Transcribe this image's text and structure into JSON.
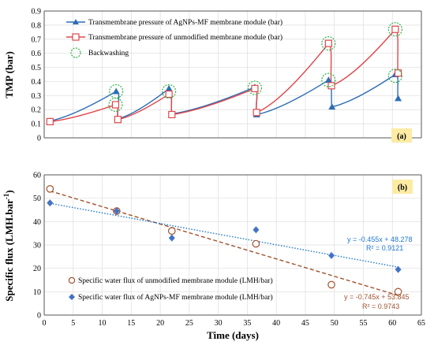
{
  "chart_data": [
    {
      "panel": "(a)",
      "type": "line",
      "ylabel": "TMP (bar)",
      "xlim": [
        0,
        65
      ],
      "ylim": [
        0,
        0.9
      ],
      "yticks": [
        "0",
        "0.1",
        "0.2",
        "0.3",
        "0.4",
        "0.5",
        "0.6",
        "0.7",
        "0.8",
        "0.9"
      ],
      "grid": true,
      "legend_position": "top-left",
      "series": [
        {
          "name": "Transmembrane pressure of AgNPs-MF membrane module (bar)",
          "color": "#2E6DB4",
          "marker": "triangle",
          "cycles": [
            [
              [
                1,
                0.12
              ],
              [
                12.4,
                0.33
              ]
            ],
            [
              [
                12.5,
                0.33
              ],
              [
                12.7,
                0.135
              ]
            ],
            [
              [
                12.7,
                0.135
              ],
              [
                21.5,
                0.35
              ]
            ],
            [
              [
                21.5,
                0.35
              ],
              [
                22,
                0.17
              ]
            ],
            [
              [
                22,
                0.17
              ],
              [
                36.3,
                0.36
              ]
            ],
            [
              [
                36.3,
                0.36
              ],
              [
                36.6,
                0.165
              ]
            ],
            [
              [
                36.6,
                0.165
              ],
              [
                49,
                0.41
              ]
            ],
            [
              [
                49,
                0.41
              ],
              [
                49.6,
                0.22
              ]
            ],
            [
              [
                49.6,
                0.22
              ],
              [
                60.5,
                0.45
              ]
            ],
            [
              [
                60.5,
                0.45
              ],
              [
                61,
                0.28
              ]
            ]
          ],
          "markers": [
            [
              1,
              0.12
            ],
            [
              12.4,
              0.33
            ],
            [
              12.7,
              0.135
            ],
            [
              21.5,
              0.35
            ],
            [
              22,
              0.17
            ],
            [
              36.3,
              0.36
            ],
            [
              36.6,
              0.165
            ],
            [
              49,
              0.41
            ],
            [
              49.6,
              0.22
            ],
            [
              60.5,
              0.45
            ],
            [
              61,
              0.28
            ]
          ]
        },
        {
          "name": "Transmembrane pressure of unmodified membrane module (bar)",
          "color": "#E0474C",
          "marker": "square",
          "cycles": [
            [
              [
                1,
                0.115
              ],
              [
                12.3,
                0.235
              ]
            ],
            [
              [
                12.3,
                0.235
              ],
              [
                12.7,
                0.13
              ]
            ],
            [
              [
                12.7,
                0.13
              ],
              [
                21.5,
                0.31
              ]
            ],
            [
              [
                21.5,
                0.31
              ],
              [
                22,
                0.165
              ]
            ],
            [
              [
                22,
                0.165
              ],
              [
                36.3,
                0.35
              ]
            ],
            [
              [
                36.3,
                0.35
              ],
              [
                36.6,
                0.18
              ]
            ],
            [
              [
                36.6,
                0.18
              ],
              [
                49,
                0.67
              ]
            ],
            [
              [
                49,
                0.67
              ],
              [
                49.5,
                0.37
              ]
            ],
            [
              [
                49.5,
                0.37
              ],
              [
                60.5,
                0.77
              ]
            ],
            [
              [
                60.5,
                0.77
              ],
              [
                61,
                0.46
              ]
            ]
          ],
          "markers": [
            [
              1,
              0.115
            ],
            [
              12.3,
              0.235
            ],
            [
              12.7,
              0.13
            ],
            [
              21.5,
              0.31
            ],
            [
              22,
              0.165
            ],
            [
              36.3,
              0.35
            ],
            [
              36.6,
              0.18
            ],
            [
              49,
              0.67
            ],
            [
              49.5,
              0.37
            ],
            [
              60.5,
              0.77
            ],
            [
              61,
              0.46
            ]
          ]
        }
      ],
      "backwashing": {
        "name": "Backwashing",
        "color": "#2DB34A",
        "points": [
          [
            12.4,
            0.33
          ],
          [
            12.3,
            0.235
          ],
          [
            21.5,
            0.33
          ],
          [
            36.3,
            0.355
          ],
          [
            49,
            0.67
          ],
          [
            49,
            0.41
          ],
          [
            60.5,
            0.77
          ],
          [
            60.5,
            0.44
          ]
        ]
      }
    },
    {
      "panel": "(b)",
      "type": "scatter",
      "xlabel": "Time (days)",
      "ylabel": "Specific flux (LMH.bar-1)",
      "xlim": [
        0,
        65
      ],
      "ylim": [
        0,
        60
      ],
      "xticks": [
        "0",
        "5",
        "10",
        "15",
        "20",
        "25",
        "30",
        "35",
        "40",
        "45",
        "50",
        "55",
        "60",
        "65"
      ],
      "yticks": [
        "0",
        "10",
        "20",
        "30",
        "40",
        "50",
        "60"
      ],
      "grid": true,
      "legend_position": "bottom-left",
      "series": [
        {
          "name": "Specific water flux of unmodified membrane module (LMH/bar)",
          "color": "#A0522D",
          "marker": "circle",
          "x": [
            1,
            12.5,
            22,
            36.5,
            49.5,
            61
          ],
          "y": [
            54,
            44.5,
            36,
            30.5,
            13,
            10
          ],
          "trendline": {
            "slope": -0.745,
            "intercept": 53.845,
            "equation": "y = -0.745x + 53.845",
            "r2": "R² = 0.9743",
            "color": "#A0522D",
            "style": "dashed"
          }
        },
        {
          "name": "Specific water flux of AgNPs-MF membrane module (LMH/bar)",
          "color": "#4472C4",
          "marker": "diamond",
          "x": [
            1,
            12.5,
            22,
            36.5,
            49.5,
            61
          ],
          "y": [
            48,
            44.5,
            33,
            36.5,
            25.5,
            19.5
          ],
          "trendline": {
            "slope": -0.455,
            "intercept": 48.278,
            "equation": "y = -0.455x + 48.278",
            "r2": "R² = 0.9121",
            "color": "#1F77D0",
            "style": "dotted"
          }
        }
      ]
    }
  ],
  "labels": {
    "panel_a": "(a)",
    "panel_b": "(b)",
    "ylabel_a": "TMP (bar)",
    "ylabel_b_main": "Specific flux (LMH.bar",
    "ylabel_b_sup": "-1",
    "ylabel_b_end": ")",
    "xlabel": "Time (days)"
  },
  "colors": {
    "panel_label_bg": "#FCEBA3",
    "grid": "#DDDDDD"
  }
}
